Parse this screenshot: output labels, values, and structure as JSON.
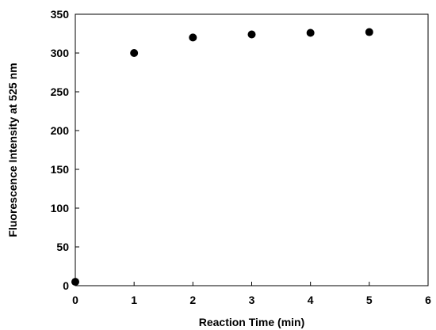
{
  "chart_data": {
    "type": "scatter",
    "title": "",
    "xlabel": "Reaction Time (min)",
    "ylabel": "Fluorescence Intensity at 525 nm",
    "xlim": [
      0,
      6
    ],
    "ylim": [
      0,
      350
    ],
    "x_ticks": [
      "0",
      "1",
      "2",
      "3",
      "4",
      "5",
      "6"
    ],
    "y_ticks": [
      "0",
      "50",
      "100",
      "150",
      "200",
      "250",
      "300",
      "350"
    ],
    "grid": false,
    "legend": "none",
    "marker_color": "#000000",
    "series": [
      {
        "x": [
          0,
          1,
          2,
          3,
          4,
          5
        ],
        "y": [
          5,
          300,
          320,
          324,
          326,
          327
        ]
      }
    ]
  }
}
